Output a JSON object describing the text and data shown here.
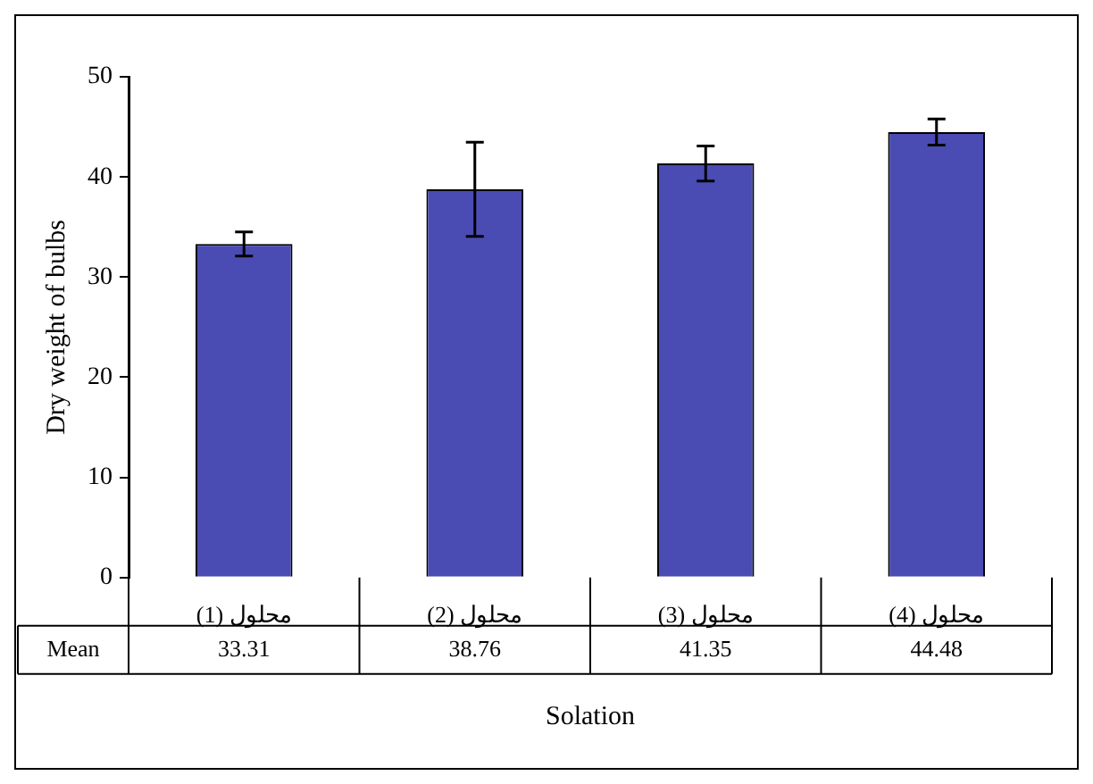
{
  "chart_data": {
    "type": "bar",
    "ylabel": "Dry weight of bulbs",
    "xlabel": "Solation",
    "categories": [
      "محلول (1)",
      "محلول (2)",
      "محلول (3)",
      "محلول (4)"
    ],
    "series": [
      {
        "name": "Mean",
        "color": "#4b4bb4",
        "values": [
          33.31,
          38.76,
          41.35,
          44.48
        ],
        "errors": [
          1.2,
          4.7,
          1.75,
          1.3
        ]
      }
    ],
    "ylim": [
      0,
      50
    ],
    "yticks": [
      0,
      10,
      20,
      30,
      40,
      50
    ],
    "grid": false,
    "legend": "bottom left",
    "data_labels": true
  }
}
